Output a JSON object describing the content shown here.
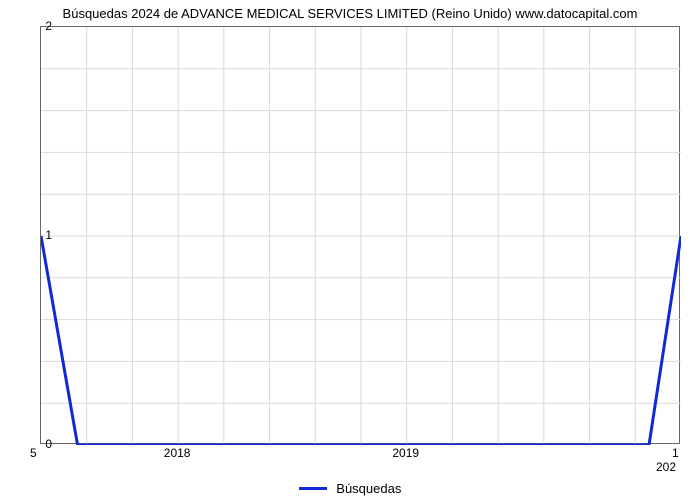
{
  "chart": {
    "type": "line",
    "title": "Búsquedas 2024 de ADVANCE MEDICAL SERVICES LIMITED (Reino Unido) www.datocapital.com",
    "title_fontsize": 13,
    "title_color": "#000000",
    "background_color": "#ffffff",
    "plot_border_color": "#666666",
    "grid_color": "#d9d9d9",
    "grid_on": true,
    "line_color": "#1029d6",
    "line_width": 3,
    "xlim": [
      2017.4,
      2020.2
    ],
    "ylim": [
      0,
      2
    ],
    "ytick_labels": [
      "0",
      "1",
      "2"
    ],
    "ytick_values": [
      0,
      1,
      2
    ],
    "xtick_major_labels": [
      "2018",
      "2019"
    ],
    "xtick_major_values": [
      2018,
      2019
    ],
    "corner_bottom_left": "5",
    "corner_bottom_right": "1",
    "corner_bottom_right2": "202",
    "data_x": [
      2017.4,
      2017.56,
      2020.06,
      2020.2
    ],
    "data_y": [
      1.0,
      0.0,
      0.0,
      1.0
    ],
    "n_x_minor_divisions": 14,
    "n_y_minor_divisions": 10,
    "legend_label": "Búsquedas",
    "label_fontsize": 12
  }
}
